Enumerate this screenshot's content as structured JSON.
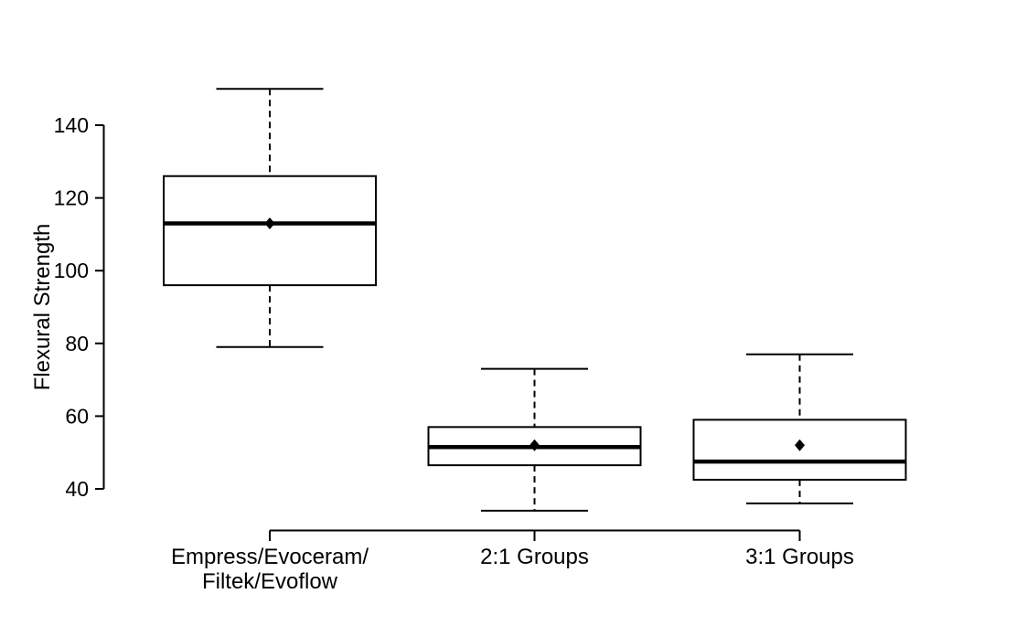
{
  "window": {
    "background": "#ffffff"
  },
  "chart_data": {
    "type": "boxplot",
    "title": "",
    "xlabel": "",
    "ylabel": "Flexural Strength",
    "ylim": [
      32,
      152
    ],
    "yticks": [
      40,
      60,
      80,
      100,
      120,
      140
    ],
    "grid": false,
    "legend": false,
    "ink_color": "#000000",
    "box_fill": "#ffffff",
    "mean_marker": "filled-diamond",
    "categories": [
      {
        "lines": [
          "Empress/Evoceram/",
          "Filtek/Evoflow"
        ]
      },
      {
        "lines": [
          "2:1 Groups"
        ]
      },
      {
        "lines": [
          "3:1 Groups"
        ]
      }
    ],
    "series": [
      {
        "name": "Empress/Evoceram/Filtek/Evoflow",
        "whisker_low": 79,
        "q1": 96,
        "median": 113,
        "q3": 126,
        "whisker_high": 150,
        "mean": 113
      },
      {
        "name": "2:1 Groups",
        "whisker_low": 34,
        "q1": 46.5,
        "median": 51.5,
        "q3": 57,
        "whisker_high": 73,
        "mean": 52
      },
      {
        "name": "3:1 Groups",
        "whisker_low": 36,
        "q1": 42.5,
        "median": 47.5,
        "q3": 59,
        "whisker_high": 77,
        "mean": 52
      }
    ]
  }
}
